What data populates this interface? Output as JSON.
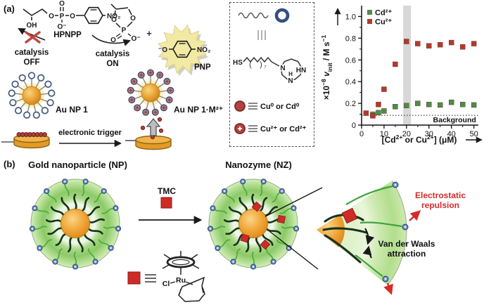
{
  "colors": {
    "gold": "#E8A13C",
    "gold_dark": "#C8861B",
    "tmc_red": "#CE2B26",
    "chart_red": "#B23A2E",
    "chart_green": "#4E8C4A",
    "bead_blue": "#7D9ED5",
    "bead_edge": "#2F4F7D",
    "shell_green": "#8FCB6B",
    "chain_dark": "#16331C",
    "strand_green": "#4FAE3C",
    "metal_dot": "#B2423F",
    "highlight_band": "#D8D8D8",
    "pnp_yellow": "#F2E9A4",
    "ligand_ring_blue": "#31507E",
    "red_text": "#D42B2B"
  },
  "panel_a": {
    "label": "(a)",
    "hpnpp": {
      "name": "HPNPP",
      "oh": "OH",
      "o_ester": "O",
      "p": "P",
      "o_top": "O",
      "o_minus": "O⁻",
      "o_aryl": "O",
      "no2": "NO₂"
    },
    "catalysis_off": {
      "line1": "catalysis",
      "line2": "OFF"
    },
    "catalysis_on": {
      "line1": "catalysis",
      "line2": "ON"
    },
    "cyclic": {
      "o_left": "O",
      "o_right": "O",
      "p": "P",
      "o_dbl": "O",
      "o_minus": "O⁻"
    },
    "plus_sign": "+",
    "pnp": {
      "name": "PNP",
      "o_minus": "⁻O",
      "no2": "NO₂"
    },
    "au_np_1": "Au NP 1",
    "au_np_1m": "Au NP 1·M²⁺",
    "trigger": "electronic trigger",
    "ligand_box": {
      "hs": "HS",
      "paren_l": "(",
      "paren_r": ")",
      "sub7": "₇",
      "n_left": "N",
      "n_right": "HN",
      "h": "H",
      "n_bottom": "N",
      "equiv_rows": [
        {
          "label": "Cu⁰ or Cd⁰"
        },
        {
          "label": "Cu²⁺ or Cd²⁺",
          "plus": "+"
        }
      ]
    }
  },
  "chart_data": {
    "type": "scatter",
    "title": "",
    "xlabel_parts": [
      "[Cd",
      "2+",
      " or Cu",
      "2+",
      "] (μM)"
    ],
    "ylabel_parts": [
      "×10",
      "−8",
      " v",
      "init",
      " / M s",
      "−1"
    ],
    "xlim": [
      0,
      52
    ],
    "ylim": [
      0,
      1.1
    ],
    "xticks": [
      0,
      10,
      20,
      30,
      40,
      50
    ],
    "xtick_labels": [
      "0",
      "10",
      "20",
      "30",
      "40",
      "50"
    ],
    "xticks_minor": [
      5,
      15,
      25,
      35,
      45
    ],
    "yticks": [
      0,
      0.2,
      0.4,
      0.6,
      0.8,
      1.0
    ],
    "ytick_labels": [
      "0",
      "0.2",
      "0.4",
      "0.6",
      "0.8",
      "1.0"
    ],
    "yticks_minor": [
      0.1,
      0.3,
      0.5,
      0.7,
      0.9
    ],
    "grid": false,
    "legend_position": "top-left",
    "highlight_band": [
      18.5,
      22
    ],
    "background_line": 0.09,
    "background_label": "Background",
    "series": [
      {
        "name": "Cd²⁺",
        "color": "#4E8C4A",
        "marker": "square",
        "points": [
          [
            5,
            0.1
          ],
          [
            7.5,
            0.115
          ],
          [
            10,
            0.13
          ],
          [
            15,
            0.17
          ],
          [
            20,
            0.18
          ],
          [
            25,
            0.2
          ],
          [
            30,
            0.19
          ],
          [
            35,
            0.185
          ],
          [
            40,
            0.21
          ],
          [
            45,
            0.19
          ],
          [
            50,
            0.185
          ]
        ]
      },
      {
        "name": "Cu²⁺",
        "color": "#B23A2E",
        "marker": "square",
        "points": [
          [
            2,
            0.11
          ],
          [
            5,
            0.085
          ],
          [
            7.5,
            0.19
          ],
          [
            10,
            0.33
          ],
          [
            15,
            0.56
          ],
          [
            20,
            0.77
          ],
          [
            25,
            0.75
          ],
          [
            30,
            0.73
          ],
          [
            35,
            0.74
          ],
          [
            40,
            0.76
          ],
          [
            45,
            0.72
          ],
          [
            50,
            0.75
          ]
        ]
      }
    ]
  },
  "panel_b": {
    "label": "(b)",
    "np_title": "Gold nanoparticle (NP)",
    "nz_title": "Nanozyme (NZ)",
    "tmc_label": "TMC",
    "electrostatic": {
      "line1": "Electrostatic",
      "line2": "repulsion"
    },
    "vdw": {
      "line1": "Van der Waals",
      "line2": "attraction"
    },
    "ru": "Ru",
    "cl": "Cl"
  }
}
